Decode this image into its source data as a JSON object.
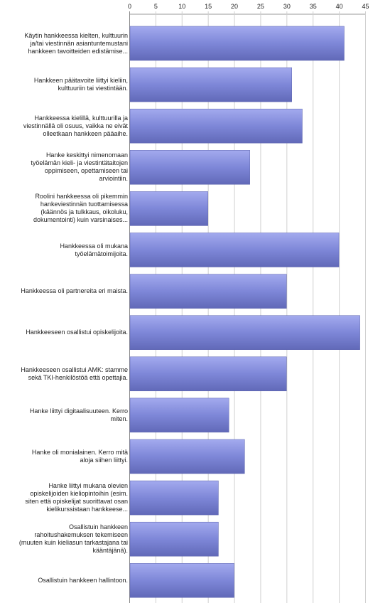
{
  "chart_data": {
    "type": "bar",
    "orientation": "horizontal",
    "title": "",
    "xlabel": "",
    "ylabel": "",
    "xlim": [
      0,
      45
    ],
    "ticks": [
      "0",
      "5",
      "10",
      "15",
      "20",
      "25",
      "30",
      "35",
      "40",
      "45"
    ],
    "grid": true,
    "bar_color": "#7b84d6",
    "categories": [
      "Käytin hankkeessa kielten, kulttuurin ja/tai viestinnän asiantuntemustani hankkeen tavoitteiden edistämise...",
      "Hankkeen päätavoite liittyi kieliin, kulttuuriin tai viestintään.",
      "Hankkeessa kielillä, kulttuurilla ja viestinnällä oli osuus, vaikka ne eivät olleetkaan hankkeen pääaihe.",
      "Hanke keskittyi nimenomaan työelämän kieli- ja viestintätaitojen oppimiseen, opettamiseen tai arviointiin.",
      "Roolini hankkeessa oli pikemmin hankeviestinnän tuottamisessa (käännös ja tulkkaus, oikoluku, dokumentointi) kuin varsinaises...",
      "Hankkeessa oli mukana työelämätoimijoita.",
      "Hankkeessa oli partnereita eri maista.",
      "Hankkeeseen osallistui opiskelijoita.",
      "Hankkeeseen osallistui AMK: stamme sekä TKI-henkilöstöä että opettajia.",
      "Hanke liittyi digitaalisuuteen. Kerro miten.",
      "Hanke oli monialainen. Kerro mitä aloja siihen liittyi.",
      "Hanke liittyi mukana olevien opiskelijoiden kieliopintoihin (esim. siten että opiskelijat suorittavat osan kielikurssistaan hankkeese...",
      "Osallistuin hankkeen rahoitushakemuksen tekemiseen (muuten kuin kieliasun tarkastajana tai kääntäjänä).",
      "Osallistuin hankkeen hallintoon."
    ],
    "values": [
      41,
      31,
      33,
      23,
      15,
      40,
      30,
      44,
      30,
      19,
      22,
      17,
      17,
      20
    ]
  }
}
